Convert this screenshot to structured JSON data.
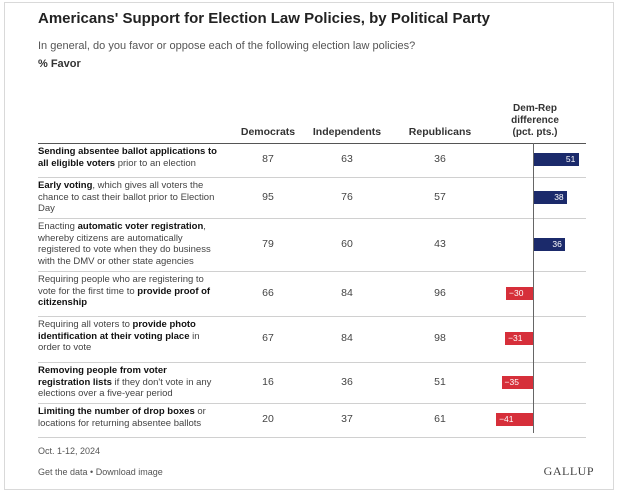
{
  "title": "Americans' Support for Election Law Policies, by Political Party",
  "subtitle": "In general, do you favor or oppose each of the following election law policies?",
  "unit": "% Favor",
  "columns": [
    "Democrats",
    "Independents",
    "Republicans"
  ],
  "diff_header": [
    "Dem-Rep",
    "difference",
    "(pct. pts.)"
  ],
  "colors": {
    "positive": "#1b2a6b",
    "negative": "#d62f3a"
  },
  "rows": [
    {
      "parts": [
        {
          "t": "Sending absentee ballot applications to all eligible voters",
          "b": true
        },
        {
          "t": " prior to an election",
          "b": false
        }
      ],
      "dem": "87",
      "ind": "63",
      "rep": "36",
      "diff": "51"
    },
    {
      "parts": [
        {
          "t": "Early voting",
          "b": true
        },
        {
          "t": ", which gives all voters the chance to cast their ballot prior to Election Day",
          "b": false
        }
      ],
      "dem": "95",
      "ind": "76",
      "rep": "57",
      "diff": "38"
    },
    {
      "parts": [
        {
          "t": "Enacting ",
          "b": false
        },
        {
          "t": "automatic voter registration",
          "b": true
        },
        {
          "t": ", whereby citizens are automatically registered to vote when they do business with the DMV or other state agencies",
          "b": false
        }
      ],
      "dem": "79",
      "ind": "60",
      "rep": "43",
      "diff": "36"
    },
    {
      "parts": [
        {
          "t": "Requiring people who are registering to vote for the first time to ",
          "b": false
        },
        {
          "t": "provide proof of citizenship",
          "b": true
        }
      ],
      "dem": "66",
      "ind": "84",
      "rep": "96",
      "diff": "-30"
    },
    {
      "parts": [
        {
          "t": "Requiring all voters to ",
          "b": false
        },
        {
          "t": "provide photo identification at their voting place",
          "b": true
        },
        {
          "t": " in order to vote",
          "b": false
        }
      ],
      "dem": "67",
      "ind": "84",
      "rep": "98",
      "diff": "-31"
    },
    {
      "parts": [
        {
          "t": "Removing people from voter registration lists",
          "b": true
        },
        {
          "t": " if they don't vote in any elections over a five-year period",
          "b": false
        }
      ],
      "dem": "16",
      "ind": "36",
      "rep": "51",
      "diff": "-35"
    },
    {
      "parts": [
        {
          "t": "Limiting the number of drop boxes",
          "b": true
        },
        {
          "t": " or locations for returning absentee ballots",
          "b": false
        }
      ],
      "dem": "20",
      "ind": "37",
      "rep": "61",
      "diff": "-41"
    }
  ],
  "chart_data": {
    "type": "table",
    "title": "Americans' Support for Election Law Policies, by Political Party",
    "columns": [
      "Democrats",
      "Independents",
      "Republicans",
      "Dem-Rep difference (pct. pts.)"
    ],
    "categories": [
      "Sending absentee ballot applications to all eligible voters prior to an election",
      "Early voting, which gives all voters the chance to cast their ballot prior to Election Day",
      "Enacting automatic voter registration, whereby citizens are automatically registered to vote when they do business with the DMV or other state agencies",
      "Requiring people who are registering to vote for the first time to provide proof of citizenship",
      "Requiring all voters to provide photo identification at their voting place in order to vote",
      "Removing people from voter registration lists if they don't vote in any elections over a five-year period",
      "Limiting the number of drop boxes or locations for returning absentee ballots"
    ],
    "series": [
      {
        "name": "Democrats",
        "values": [
          87,
          95,
          79,
          66,
          67,
          16,
          20
        ]
      },
      {
        "name": "Independents",
        "values": [
          63,
          76,
          60,
          84,
          84,
          36,
          37
        ]
      },
      {
        "name": "Republicans",
        "values": [
          36,
          57,
          43,
          96,
          98,
          51,
          61
        ]
      },
      {
        "name": "Dem-Rep difference (pct. pts.)",
        "values": [
          51,
          38,
          36,
          -30,
          -31,
          -35,
          -41
        ]
      }
    ],
    "diff_bar_range": [
      -41,
      51
    ]
  },
  "footer": {
    "date": "Oct. 1-12, 2024",
    "link_data": "Get the data",
    "separator": " • ",
    "link_download": "Download image",
    "brand": "GALLUP"
  }
}
